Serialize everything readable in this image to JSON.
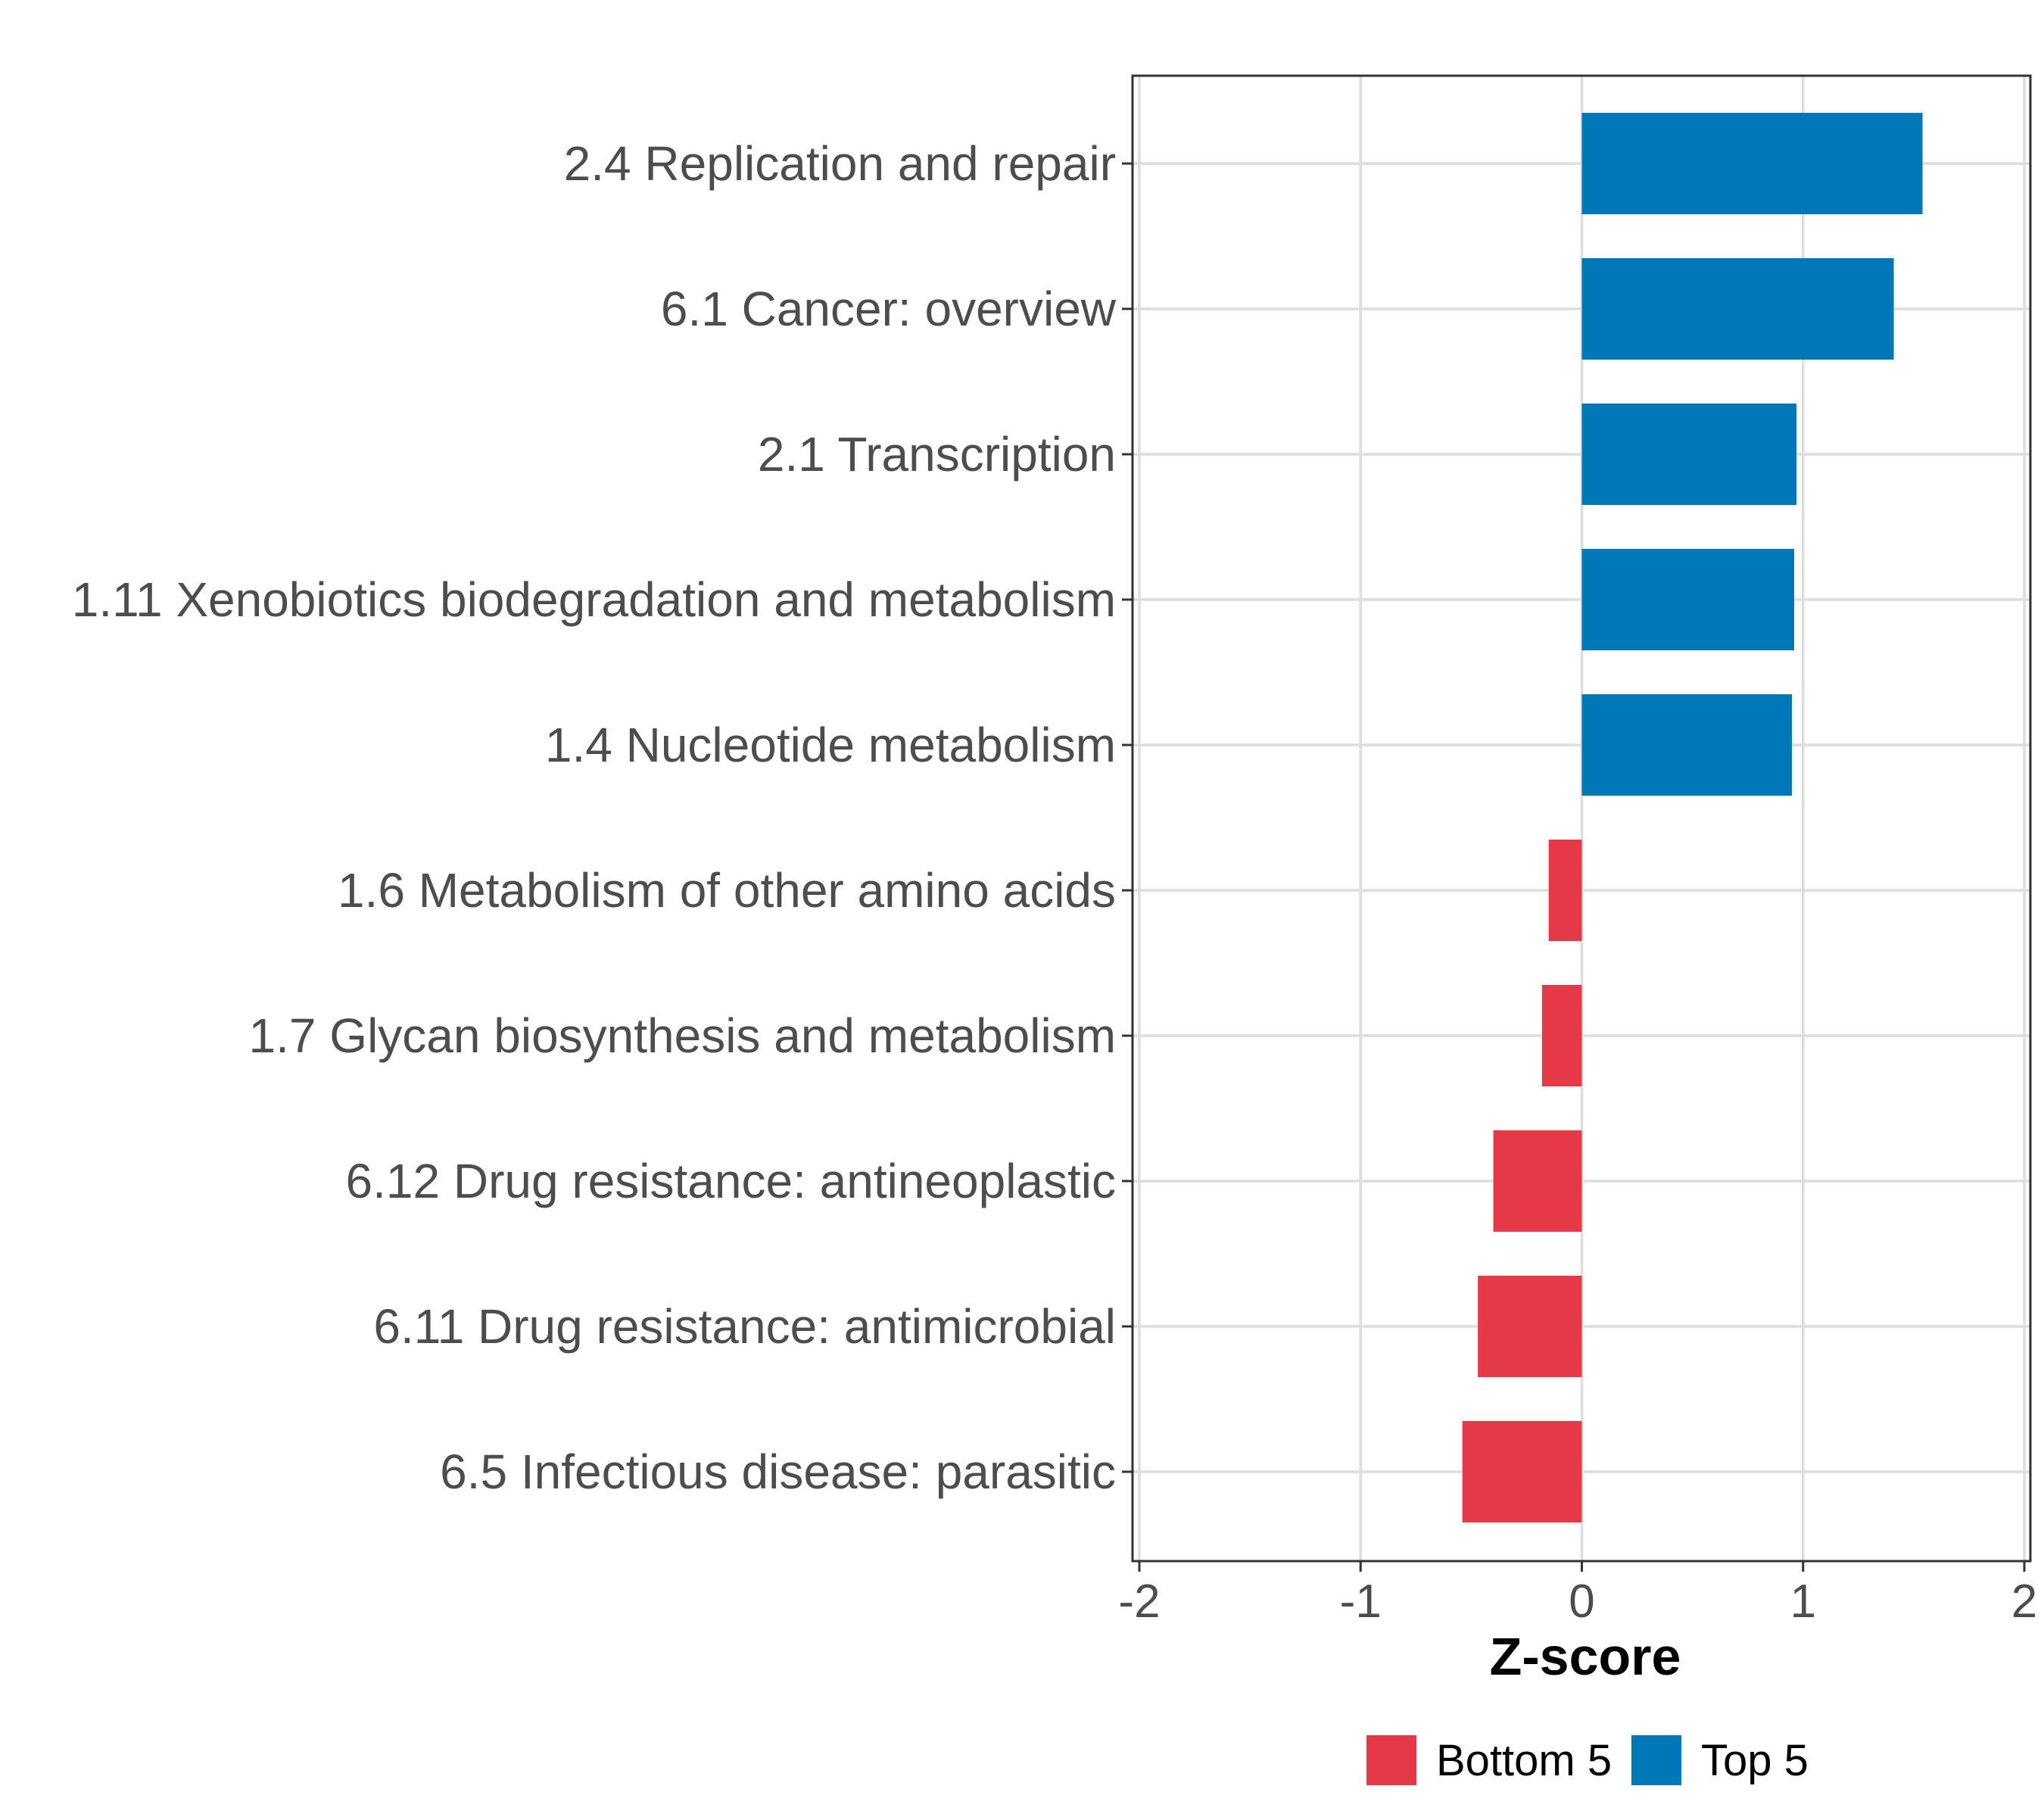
{
  "chart_data": {
    "type": "bar",
    "orientation": "horizontal",
    "title": "",
    "xlabel": "Z-score",
    "ylabel": "",
    "xlim": [
      -2,
      2
    ],
    "x_ticks": [
      -2,
      -1,
      0,
      1,
      2
    ],
    "x_tick_labels": [
      "-2",
      "-1",
      "0",
      "1",
      "2"
    ],
    "grid": true,
    "legend_position": "bottom",
    "categories": [
      "2.4 Replication and repair",
      "6.1 Cancer: overview",
      "2.1 Transcription",
      "1.11 Xenobiotics biodegradation and metabolism",
      "1.4 Nucleotide metabolism",
      "1.6 Metabolism of other amino acids",
      "1.7 Glycan biosynthesis and metabolism",
      "6.12 Drug resistance: antineoplastic",
      "6.11 Drug resistance: antimicrobial",
      "6.5 Infectious disease: parasitic"
    ],
    "values": [
      1.54,
      1.41,
      0.97,
      0.96,
      0.95,
      -0.15,
      -0.18,
      -0.4,
      -0.47,
      -0.54
    ],
    "groups": [
      "Top 5",
      "Top 5",
      "Top 5",
      "Top 5",
      "Top 5",
      "Bottom 5",
      "Bottom 5",
      "Bottom 5",
      "Bottom 5",
      "Bottom 5"
    ],
    "legend": [
      {
        "name": "Bottom 5",
        "color": "#e63946"
      },
      {
        "name": "Top 5",
        "color": "#0077b6"
      }
    ]
  }
}
